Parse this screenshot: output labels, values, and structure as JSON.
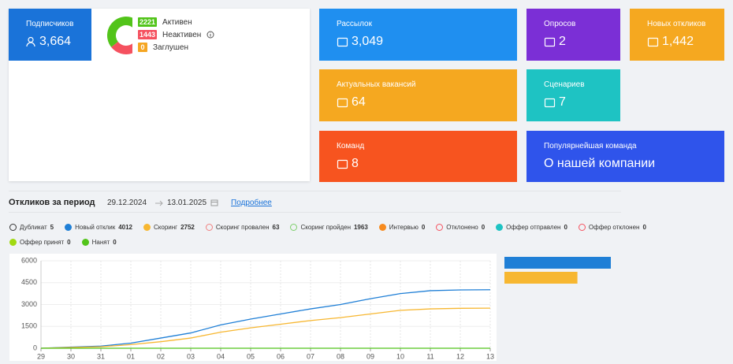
{
  "subscribers": {
    "label": "Подписчиков",
    "value": "3,664",
    "color": "#1a73d9",
    "statuses": [
      {
        "count": 2221,
        "label": "Активен",
        "color": "#52c41a"
      },
      {
        "count": 1443,
        "label": "Неактивен",
        "color": "#f5515f"
      },
      {
        "count": 0,
        "label": "Заглушен",
        "color": "#f5a623"
      }
    ]
  },
  "cards": [
    {
      "label": "Рассылок",
      "value": "3,049",
      "color": "#1f8ff0"
    },
    {
      "label": "Опросов",
      "value": "2",
      "color": "#7b2fd6"
    },
    {
      "label": "Новых откликов",
      "value": "1,442",
      "color": "#f5a820"
    },
    {
      "label": "Актуальных вакансий",
      "value": "64",
      "color": "#f5a820"
    },
    {
      "label": "Сценариев",
      "value": "7",
      "color": "#1ec3c3"
    },
    {
      "label": "Команд",
      "value": "8",
      "color": "#f7541f"
    },
    {
      "label": "Популярнейшая команда",
      "value": "О нашей компании",
      "color": "#2f54eb"
    }
  ],
  "period": {
    "title": "Откликов за период",
    "from": "29.12.2024",
    "to": "13.01.2025",
    "link": "Подробнее"
  },
  "chart_data": {
    "type": "line",
    "categories": [
      "29",
      "30",
      "31",
      "01",
      "02",
      "03",
      "04",
      "05",
      "06",
      "07",
      "08",
      "09",
      "10",
      "11",
      "12",
      "13"
    ],
    "ylim": [
      0,
      6000
    ],
    "yticks": [
      0,
      1500,
      3000,
      4500,
      6000
    ],
    "grid": true,
    "series": [
      {
        "name": "Дубликат",
        "count": 5,
        "color": "#333333",
        "hidden": true
      },
      {
        "name": "Новый отклик",
        "count": 4012,
        "color": "#1f7fd6",
        "hidden": false,
        "values": [
          0,
          80,
          150,
          350,
          700,
          1050,
          1600,
          2000,
          2350,
          2700,
          3000,
          3400,
          3750,
          3950,
          4000,
          4012
        ]
      },
      {
        "name": "Скоринг",
        "count": 2752,
        "color": "#f7b731",
        "hidden": false,
        "values": [
          0,
          50,
          100,
          250,
          450,
          700,
          1100,
          1400,
          1650,
          1900,
          2100,
          2350,
          2600,
          2700,
          2740,
          2752
        ]
      },
      {
        "name": "Скоринг провален",
        "count": 63,
        "color": "#f08080",
        "hidden": true
      },
      {
        "name": "Скоринг пройден",
        "count": 1963,
        "color": "#7ccf6a",
        "hidden": true
      },
      {
        "name": "Интервью",
        "count": 0,
        "color": "#f78b1f",
        "hidden": false
      },
      {
        "name": "Отклонено",
        "count": 0,
        "color": "#f5515f",
        "hidden": true
      },
      {
        "name": "Оффер отправлен",
        "count": 0,
        "color": "#1ec3c3",
        "hidden": false
      },
      {
        "name": "Оффер отклонен",
        "count": 0,
        "color": "#f5515f",
        "hidden": true
      },
      {
        "name": "Оффер принят",
        "count": 0,
        "color": "#a0d911",
        "hidden": false
      },
      {
        "name": "Нанят",
        "count": 0,
        "color": "#52c41a",
        "hidden": false,
        "values": [
          0,
          0,
          0,
          0,
          0,
          0,
          0,
          0,
          0,
          0,
          0,
          0,
          0,
          0,
          0,
          0
        ]
      }
    ]
  }
}
